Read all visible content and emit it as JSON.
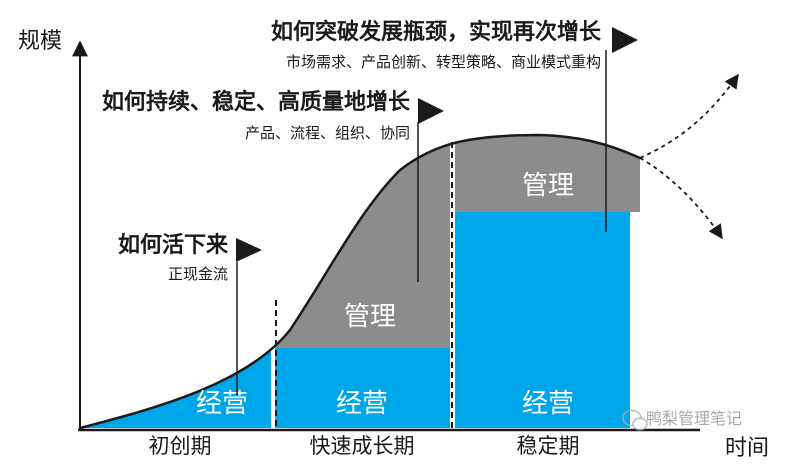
{
  "axes": {
    "y_label": "规模",
    "x_label": "时间"
  },
  "phases": [
    {
      "name": "初创期"
    },
    {
      "name": "快速成长期"
    },
    {
      "name": "稳定期"
    }
  ],
  "block_labels": {
    "operations": "经营",
    "management": "管理"
  },
  "annotations": {
    "survival": {
      "title": "如何活下来",
      "subtitle": "正现金流"
    },
    "growth": {
      "title": "如何持续、稳定、高质量地增长",
      "subtitle": "产品、流程、组织、协同"
    },
    "breakthrough": {
      "title": "如何突破发展瓶颈，实现再次增长",
      "subtitle": "市场需求、产品创新、转型策略、商业模式重构"
    }
  },
  "watermark": {
    "text": "鸭梨管理笔记"
  },
  "colors": {
    "operations": "#00A6EA",
    "management": "#8C8C8C",
    "curve": "#1a1a1a",
    "flag": "#1a1a1a"
  }
}
